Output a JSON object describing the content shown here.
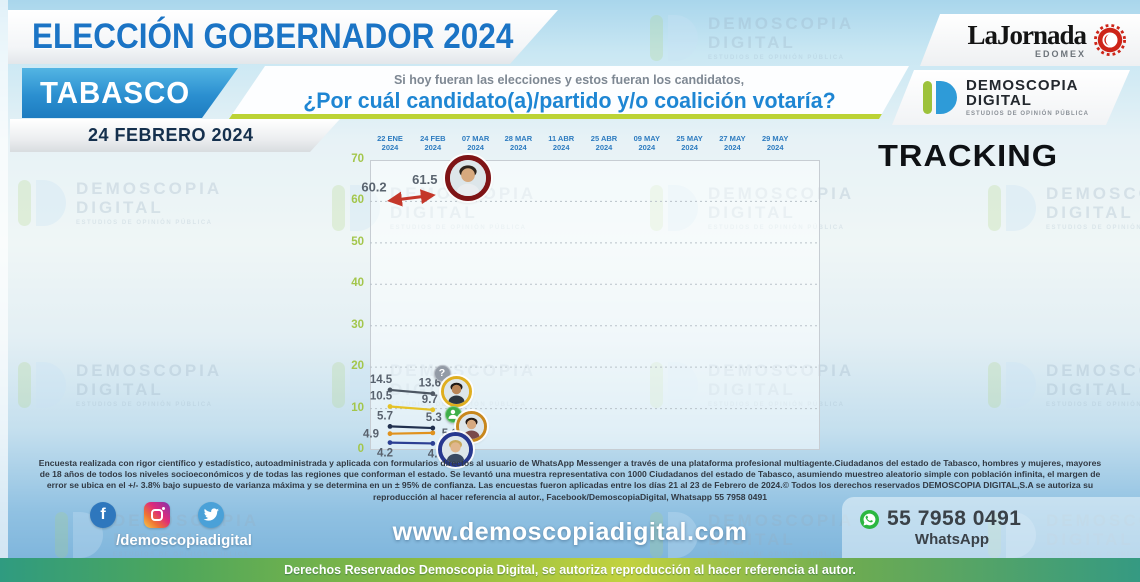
{
  "header": {
    "title": "ELECCIÓN GOBERNADOR 2024",
    "state": "TABASCO",
    "date": "24 FEBRERO 2024",
    "question_intro": "Si hoy fueran las elecciones y estos fueran los candidatos,",
    "question_main": "¿Por cuál candidato(a)/partido y/o coalición votaría?",
    "tracking_label": "TRACKING"
  },
  "logos": {
    "lajornada_name": "LaJornada",
    "lajornada_region": "EDOMEX",
    "demoscopia_line1": "DEMOSCOPIA",
    "demoscopia_line2": "DIGITAL",
    "demoscopia_tagline": "ESTUDIOS DE OPINIÓN PÚBLICA"
  },
  "watermark": {
    "line1": "DEMOSCOPIA",
    "line2": "DIGITAL",
    "tagline": "ESTUDIOS DE OPINIÓN PÚBLICA"
  },
  "chart_data": {
    "type": "line",
    "title": "TRACKING",
    "x_dates": [
      "22 ENE",
      "24 FEB",
      "07 MAR",
      "28 MAR",
      "11 ABR",
      "25 ABR",
      "09 MAY",
      "25 MAY",
      "27 MAY",
      "29 MAY"
    ],
    "x_year": "2024",
    "ylim": [
      0,
      70
    ],
    "yticks": [
      70,
      60,
      50,
      40,
      30,
      20,
      10,
      0
    ],
    "grid": true,
    "legend_position": "inline-icons",
    "series": [
      {
        "name": "candidato-puntero",
        "icon": "candidate-photo-darkred-ring",
        "color": "#c4372a",
        "ring_color": "#7e1416",
        "values": [
          60.2,
          61.5
        ]
      },
      {
        "name": "no-sabe-no-contesto",
        "icon": "question-mark-gray-circle",
        "color": "#4d5763",
        "ring_color": "#939ba6",
        "values": [
          14.5,
          13.6
        ]
      },
      {
        "name": "candidato-amarillo",
        "icon": "candidate-photo-yellow-ring",
        "color": "#e5c226",
        "ring_color": "#dfae1f",
        "values": [
          10.5,
          9.7
        ]
      },
      {
        "name": "candidato-verde",
        "icon": "person-green-circle",
        "color": "#20304e",
        "ring_color": "#43a047",
        "values": [
          5.7,
          5.3
        ]
      },
      {
        "name": "candidato-naranja",
        "icon": "candidate-photo-orange-ring",
        "color": "#e0921e",
        "ring_color": "#c8871c",
        "values": [
          4.9,
          5.1
        ]
      },
      {
        "name": "candidato-azul",
        "icon": "candidate-photo-navy-ring",
        "color": "#2c3f93",
        "ring_color": "#27388f",
        "values": [
          4.2,
          4.0
        ]
      }
    ]
  },
  "footer": {
    "methodology": "Encuesta realizada con rigor científico y estadístico, autoadministrada y aplicada con formularios directos al usuario de WhatsApp Messenger a través de una plataforma profesional multiagente.Ciudadanos del estado de Tabasco, hombres y mujeres, mayores de 18 años de todos los niveles socioeconómicos y de todas las regiones que conforman el estado. Se levantó una muestra representativa con 1000 Ciudadanos del estado de Tabasco, asumiendo muestreo aleatorio simple con población infinita, el margen de error se ubica en el +/- 3.8% bajo supuesto de varianza máxima y se determina en un ± 95% de confianza. Las encuestas fueron aplicadas entre los días 21 al 23 de Febrero de 2024.© Todos los derechos reservados DEMOSCOPIA DIGITAL,S.A se autoriza su reproducción al hacer referencia al autor., Facebook/DemoscopiaDigital, Whatsapp 55 7958 0491",
    "social_handle": "/demoscopiadigital",
    "website": "www.demoscopiadigital.com",
    "whatsapp_number": "55 7958 0491",
    "whatsapp_label": "WhatsApp",
    "social_icons": [
      "facebook-icon",
      "instagram-icon",
      "twitter-icon",
      "whatsapp-icon"
    ]
  },
  "bottom_bar": {
    "text": "Derechos Reservados Demoscopia Digital, se autoriza reproducción al hacer referencia al autor."
  }
}
